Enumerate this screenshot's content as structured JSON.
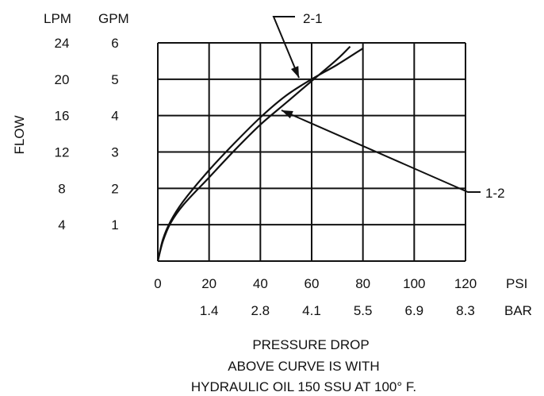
{
  "chart_data": {
    "type": "line",
    "title": "",
    "xlabel": "PRESSURE DROP",
    "ylabel": "FLOW",
    "x_units": [
      "PSI",
      "BAR"
    ],
    "y_units": [
      "LPM",
      "GPM"
    ],
    "x_ticks_psi": [
      "0",
      "20",
      "40",
      "60",
      "80",
      "100",
      "120"
    ],
    "x_ticks_bar": [
      "1.4",
      "2.8",
      "4.1",
      "5.5",
      "6.9",
      "8.3"
    ],
    "y_ticks_lpm": [
      "4",
      "8",
      "12",
      "16",
      "20",
      "24"
    ],
    "y_ticks_gpm": [
      "1",
      "2",
      "3",
      "4",
      "5",
      "6"
    ],
    "xlim": [
      0,
      120
    ],
    "ylim": [
      0,
      6
    ],
    "grid": true,
    "series": [
      {
        "name": "2-1",
        "x": [
          0,
          2,
          5,
          10,
          20,
          30,
          40,
          50,
          60,
          70,
          80
        ],
        "y": [
          0,
          0.6,
          1.1,
          1.65,
          2.5,
          3.25,
          3.95,
          4.55,
          5.0,
          5.4,
          5.85
        ]
      },
      {
        "name": "1-2",
        "x": [
          0,
          2,
          5,
          10,
          20,
          30,
          40,
          50,
          60,
          70,
          75
        ],
        "y": [
          0,
          0.55,
          1.05,
          1.55,
          2.3,
          3.05,
          3.75,
          4.35,
          4.95,
          5.55,
          5.9
        ]
      }
    ]
  },
  "footnote": {
    "line1": "ABOVE CURVE IS WITH",
    "line2": "HYDRAULIC OIL 150 SSU AT 100° F."
  }
}
